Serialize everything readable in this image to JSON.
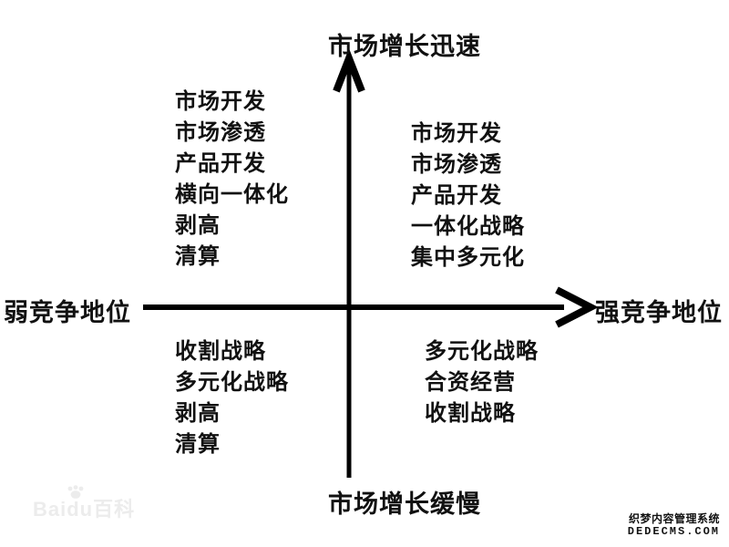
{
  "diagram": {
    "title_implicit": "",
    "axis_labels": {
      "top": "市场增长迅速",
      "bottom": "市场增长缓慢",
      "left": "弱竞争地位",
      "right": "强竞争地位"
    },
    "quadrants": {
      "top_left": {
        "items": [
          "市场开发",
          "市场渗透",
          "产品开发",
          "横向一体化",
          "剥高",
          "清算"
        ]
      },
      "top_right": {
        "items": [
          "市场开发",
          "市场渗透",
          "产品开发",
          "一体化战略",
          "集中多元化"
        ]
      },
      "bottom_left": {
        "items": [
          "收割战略",
          "多元化战略",
          "剥高",
          "清算"
        ]
      },
      "bottom_right": {
        "items": [
          "多元化战略",
          "合资经营",
          "收割战略"
        ]
      }
    },
    "colors": {
      "background": "#ffffff",
      "axis": "#000000",
      "text": "#111111",
      "watermark_light": "#ececec",
      "watermark_dark": "#111111"
    }
  },
  "watermarks": {
    "baidu": "Baidu百科",
    "dedecms_line1": "织梦内容管理系统",
    "dedecms_line2": "DEDECMS.COM"
  }
}
